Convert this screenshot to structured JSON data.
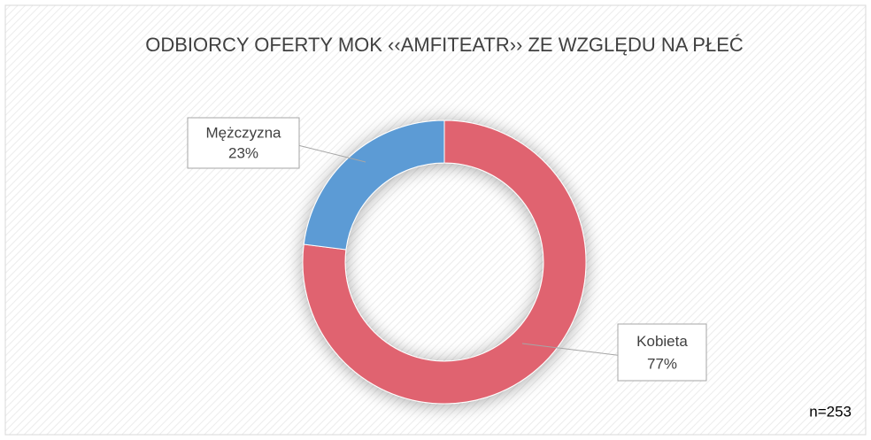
{
  "chart_data": {
    "type": "donut",
    "title": "ODBIORCY OFERTY MOK ‹‹AMFITEATR›› ZE WZGLĘDU NA PŁEĆ",
    "categories": [
      "Kobieta",
      "Mężczyzna"
    ],
    "values": [
      77,
      23
    ],
    "value_labels": [
      "77%",
      "23%"
    ],
    "colors": [
      "#e06470",
      "#5b9bd5"
    ],
    "annotation": "n=253"
  }
}
